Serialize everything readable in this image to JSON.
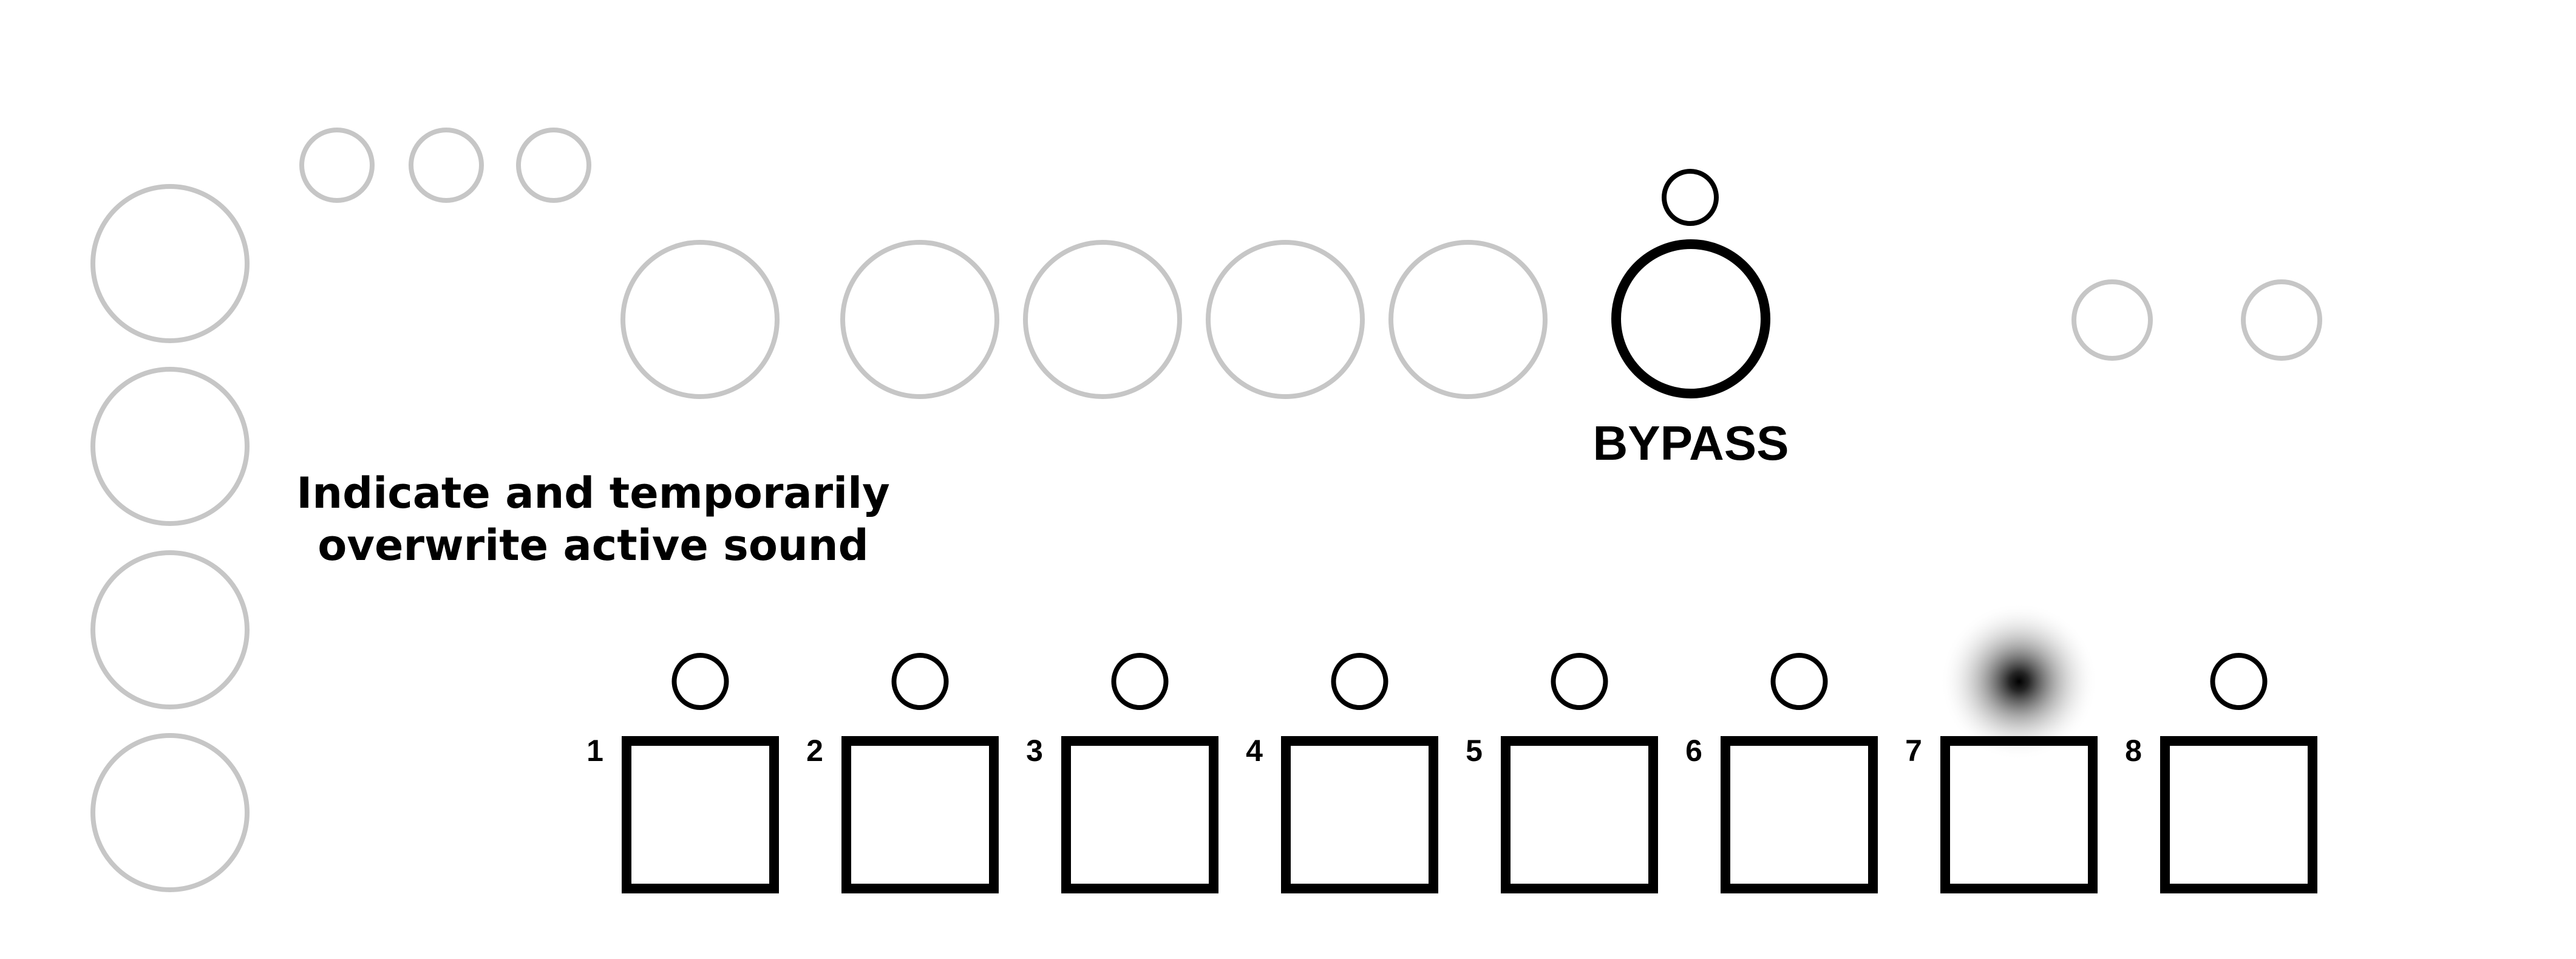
{
  "labels": {
    "bypass": "BYPASS",
    "description_line1": "Indicate and temporarily",
    "description_line2": "overwrite active sound"
  },
  "pads": [
    {
      "number": "1",
      "led": "off"
    },
    {
      "number": "2",
      "led": "off"
    },
    {
      "number": "3",
      "led": "off"
    },
    {
      "number": "4",
      "led": "off"
    },
    {
      "number": "5",
      "led": "off"
    },
    {
      "number": "6",
      "led": "off"
    },
    {
      "number": "7",
      "led": "glowing"
    },
    {
      "number": "8",
      "led": "off"
    }
  ],
  "colors": {
    "inactive_outline": "#c6c6c6",
    "active_outline": "#000000",
    "background": "#ffffff"
  }
}
